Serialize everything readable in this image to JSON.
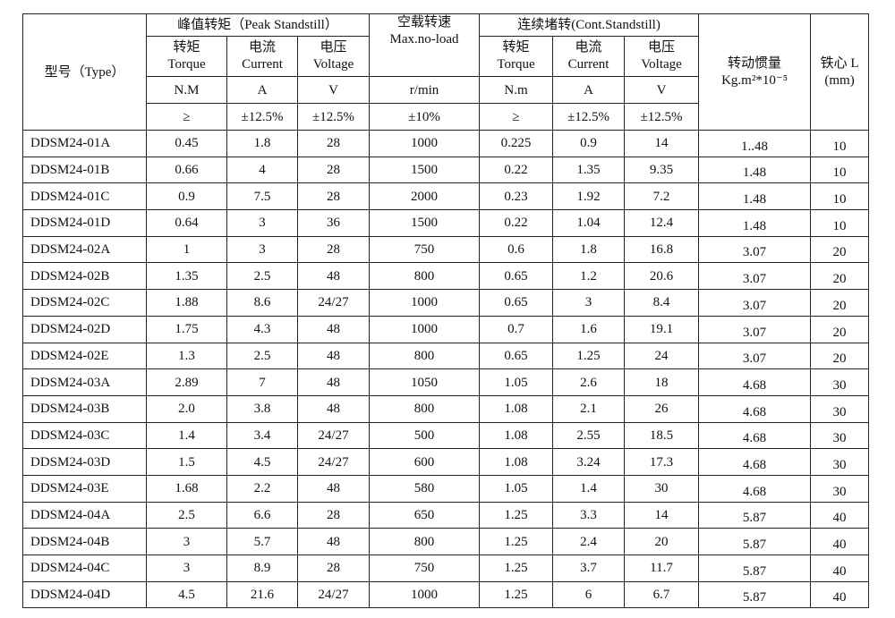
{
  "header": {
    "type_label": "型号（Type）",
    "peak": "峰值转矩（Peak Standstill）",
    "noload": {
      "zh": "空载转速",
      "en": "Max.no-load"
    },
    "cont": "连续堵转(Cont.Standstill)",
    "inertia": {
      "zh": "转动惯量",
      "en": "Kg.m²*10⁻⁵"
    },
    "core": {
      "zh": "铁心 L",
      "en": "(mm)"
    },
    "sub": [
      {
        "zh": "转矩",
        "en": "Torque"
      },
      {
        "zh": "电流",
        "en": "Current"
      },
      {
        "zh": "电压",
        "en": "Voltage"
      },
      {
        "zh": "转矩",
        "en": "Torque"
      },
      {
        "zh": "电流",
        "en": "Current"
      },
      {
        "zh": "电压",
        "en": "Voltage"
      }
    ],
    "units": [
      "N.M",
      "A",
      "V",
      "r/min",
      "N.m",
      "A",
      "V"
    ],
    "tolerances": [
      "≥",
      "±12.5%",
      "±12.5%",
      "±10%",
      "≥",
      "±12.5%",
      "±12.5%"
    ]
  },
  "rows": [
    [
      "DDSM24-01A",
      "0.45",
      "1.8",
      "28",
      "1000",
      "0.225",
      "0.9",
      "14",
      "1..48",
      "10"
    ],
    [
      "DDSM24-01B",
      "0.66",
      "4",
      "28",
      "1500",
      "0.22",
      "1.35",
      "9.35",
      "1.48",
      "10"
    ],
    [
      "DDSM24-01C",
      "0.9",
      "7.5",
      "28",
      "2000",
      "0.23",
      "1.92",
      "7.2",
      "1.48",
      "10"
    ],
    [
      "DDSM24-01D",
      "0.64",
      "3",
      "36",
      "1500",
      "0.22",
      "1.04",
      "12.4",
      "1.48",
      "10"
    ],
    [
      "DDSM24-02A",
      "1",
      "3",
      "28",
      "750",
      "0.6",
      "1.8",
      "16.8",
      "3.07",
      "20"
    ],
    [
      "DDSM24-02B",
      "1.35",
      "2.5",
      "48",
      "800",
      "0.65",
      "1.2",
      "20.6",
      "3.07",
      "20"
    ],
    [
      "DDSM24-02C",
      "1.88",
      "8.6",
      "24/27",
      "1000",
      "0.65",
      "3",
      "8.4",
      "3.07",
      "20"
    ],
    [
      "DDSM24-02D",
      "1.75",
      "4.3",
      "48",
      "1000",
      "0.7",
      "1.6",
      "19.1",
      "3.07",
      "20"
    ],
    [
      "DDSM24-02E",
      "1.3",
      "2.5",
      "48",
      "800",
      "0.65",
      "1.25",
      "24",
      "3.07",
      "20"
    ],
    [
      "DDSM24-03A",
      "2.89",
      "7",
      "48",
      "1050",
      "1.05",
      "2.6",
      "18",
      "4.68",
      "30"
    ],
    [
      "DDSM24-03B",
      "2.0",
      "3.8",
      "48",
      "800",
      "1.08",
      "2.1",
      "26",
      "4.68",
      "30"
    ],
    [
      "DDSM24-03C",
      "1.4",
      "3.4",
      "24/27",
      "500",
      "1.08",
      "2.55",
      "18.5",
      "4.68",
      "30"
    ],
    [
      "DDSM24-03D",
      "1.5",
      "4.5",
      "24/27",
      "600",
      "1.08",
      "3.24",
      "17.3",
      "4.68",
      "30"
    ],
    [
      "DDSM24-03E",
      "1.68",
      "2.2",
      "48",
      "580",
      "1.05",
      "1.4",
      "30",
      "4.68",
      "30"
    ],
    [
      "DDSM24-04A",
      "2.5",
      "6.6",
      "28",
      "650",
      "1.25",
      "3.3",
      "14",
      "5.87",
      "40"
    ],
    [
      "DDSM24-04B",
      "3",
      "5.7",
      "48",
      "800",
      "1.25",
      "2.4",
      "20",
      "5.87",
      "40"
    ],
    [
      "DDSM24-04C",
      "3",
      "8.9",
      "28",
      "750",
      "1.25",
      "3.7",
      "11.7",
      "5.87",
      "40"
    ],
    [
      "DDSM24-04D",
      "4.5",
      "21.6",
      "24/27",
      "1000",
      "1.25",
      "6",
      "6.7",
      "5.87",
      "40"
    ]
  ]
}
